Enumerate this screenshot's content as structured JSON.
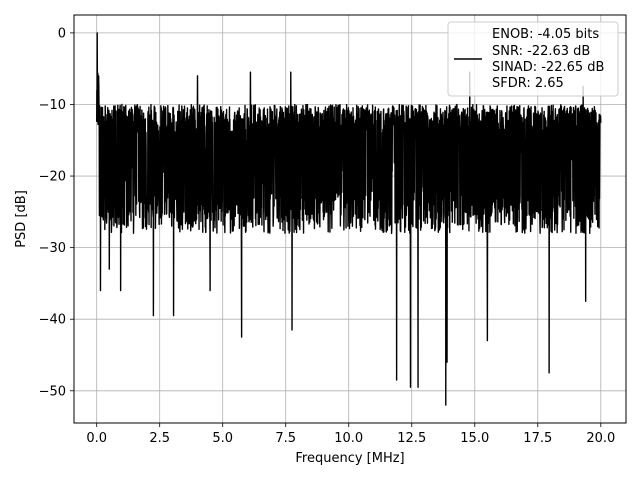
{
  "chart_data": {
    "type": "line",
    "xlabel": "Frequency [MHz]",
    "ylabel": "PSD [dB]",
    "xlim": [
      -0.9,
      21.0
    ],
    "ylim": [
      -54.5,
      2.5
    ],
    "xticks": [
      0.0,
      2.5,
      5.0,
      7.5,
      10.0,
      12.5,
      15.0,
      17.5,
      20.0
    ],
    "xtick_labels": [
      "0.0",
      "2.5",
      "5.0",
      "7.5",
      "10.0",
      "12.5",
      "15.0",
      "17.5",
      "20.0"
    ],
    "yticks": [
      0,
      -10,
      -20,
      -30,
      -40,
      -50
    ],
    "ytick_labels": [
      "0",
      "−10",
      "−20",
      "−30",
      "−40",
      "−50"
    ],
    "grid": true,
    "legend_position": "top-right",
    "legend_lines": [
      "ENOB: -4.05 bits",
      "SNR: -22.63 dB",
      "SINAD: -22.65 dB",
      "SFDR: 2.65"
    ],
    "series": [
      {
        "color": "#000000",
        "x_start": 0.0,
        "x_end": 20.0,
        "envelope_top": -10,
        "envelope_bottom": -28,
        "peaks": [
          {
            "x": 0.02,
            "y": 0.0
          },
          {
            "x": 0.12,
            "y": -12.5
          },
          {
            "x": 1.0,
            "y": -10.0
          },
          {
            "x": 4.0,
            "y": -6.0
          },
          {
            "x": 6.1,
            "y": -5.5
          },
          {
            "x": 7.7,
            "y": -5.5
          },
          {
            "x": 14.8,
            "y": -5.5
          },
          {
            "x": 19.3,
            "y": -7.5
          }
        ],
        "dips": [
          {
            "x": 0.15,
            "y": -36.0
          },
          {
            "x": 0.5,
            "y": -33.0
          },
          {
            "x": 0.95,
            "y": -36.0
          },
          {
            "x": 2.25,
            "y": -39.5
          },
          {
            "x": 3.05,
            "y": -39.5
          },
          {
            "x": 4.5,
            "y": -36.0
          },
          {
            "x": 5.75,
            "y": -42.5
          },
          {
            "x": 7.75,
            "y": -41.5
          },
          {
            "x": 11.9,
            "y": -48.5
          },
          {
            "x": 12.45,
            "y": -49.5
          },
          {
            "x": 12.75,
            "y": -49.5
          },
          {
            "x": 13.85,
            "y": -52.0
          },
          {
            "x": 13.9,
            "y": -46.0
          },
          {
            "x": 15.5,
            "y": -43.0
          },
          {
            "x": 17.95,
            "y": -47.5
          },
          {
            "x": 19.4,
            "y": -37.5
          }
        ]
      }
    ]
  }
}
